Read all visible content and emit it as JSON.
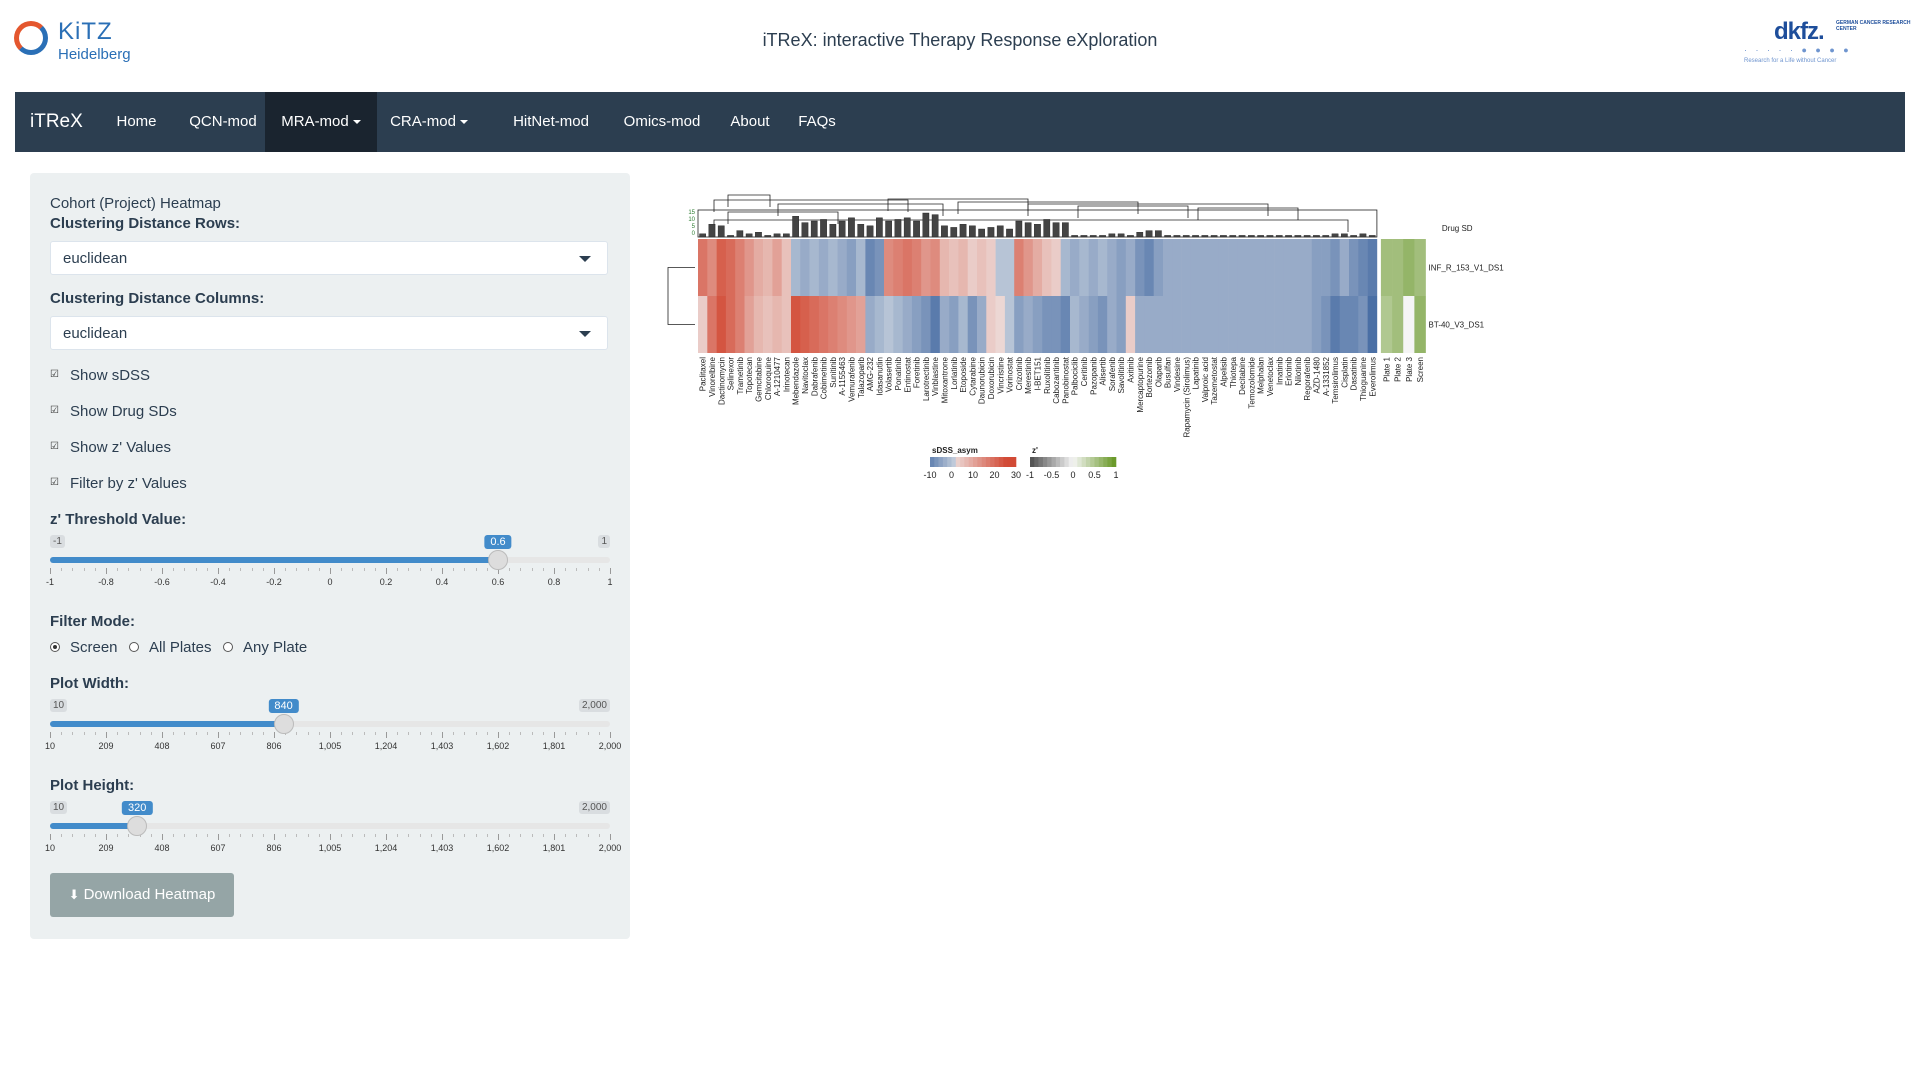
{
  "header": {
    "title": "iTReX: interactive Therapy Response eXploration",
    "left_logo": "KiTZ Heidelberg",
    "right_logo": "dkfz. GERMAN CANCER RESEARCH CENTER IN THE HELMHOLTZ ASSOCIATION"
  },
  "navbar": {
    "brand": "iTReX",
    "items": [
      {
        "label": "Home"
      },
      {
        "label": "QCN-mod"
      },
      {
        "label": "MRA-mod",
        "dropdown": true,
        "active": true
      },
      {
        "label": "CRA-mod",
        "dropdown": true
      },
      {
        "label": "HitNet-mod"
      },
      {
        "label": "Omics-mod"
      },
      {
        "label": "About"
      },
      {
        "label": "FAQs"
      }
    ]
  },
  "sidebar": {
    "section_title": "Cohort (Project) Heatmap",
    "rows_label": "Clustering Distance Rows:",
    "rows_value": "euclidean",
    "cols_label": "Clustering Distance Columns:",
    "cols_value": "euclidean",
    "checkboxes": [
      {
        "label": "Show sDSS",
        "checked": true
      },
      {
        "label": "Show Drug SDs",
        "checked": true
      },
      {
        "label": "Show z' Values",
        "checked": true
      },
      {
        "label": "Filter by z' Values",
        "checked": true
      }
    ],
    "z_threshold": {
      "label": "z' Threshold Value:",
      "min": -1,
      "max": 1,
      "value": 0.6,
      "min_label": "-1",
      "max_label": "1",
      "value_label": "0.6",
      "ticks": [
        "-1",
        "-0.8",
        "-0.6",
        "-0.4",
        "-0.2",
        "0",
        "0.2",
        "0.4",
        "0.6",
        "0.8",
        "1"
      ]
    },
    "filter_mode": {
      "label": "Filter Mode:",
      "options": [
        "Screen",
        "All Plates",
        "Any Plate"
      ],
      "selected": "Screen"
    },
    "plot_width": {
      "label": "Plot Width:",
      "min": 10,
      "max": 2000,
      "value": 840,
      "min_label": "10",
      "max_label": "2,000",
      "value_label": "840",
      "ticks": [
        "10",
        "209",
        "408",
        "607",
        "806",
        "1,005",
        "1,204",
        "1,403",
        "1,602",
        "1,801",
        "2,000"
      ]
    },
    "plot_height": {
      "label": "Plot Height:",
      "min": 10,
      "max": 2000,
      "value": 320,
      "min_label": "10",
      "max_label": "2,000",
      "value_label": "320",
      "ticks": [
        "10",
        "209",
        "408",
        "607",
        "806",
        "1,005",
        "1,204",
        "1,403",
        "1,602",
        "1,801",
        "2,000"
      ]
    },
    "download_label": "Download Heatmap",
    "download_icon": "download-icon"
  },
  "chart_data": {
    "type": "heatmap",
    "rows": [
      "INF_R_153_V1_DS1",
      "BT-40_V3_DS1"
    ],
    "drugs": [
      "Paclitaxel",
      "Vinorelbine",
      "Dactinomycin",
      "Selinexor",
      "Trametinib",
      "Topotecan",
      "Gemcitabine",
      "Chloroquine",
      "A-1210477",
      "Irinotecan",
      "Mebendazole",
      "Navitoclax",
      "Dabrafenib",
      "Cobimetinib",
      "Sunitinib",
      "A-1155463",
      "Vemurafenib",
      "Talazoparib",
      "AMG-232",
      "Idasanutlin",
      "Volasertib",
      "Ponatinib",
      "Entinostat",
      "Foretinib",
      "Larotrectinib",
      "Vinblastine",
      "Mitoxantrone",
      "Lorlatinib",
      "Etoposide",
      "Cytarabine",
      "Daunorubicin",
      "Doxorubicin",
      "Vincristine",
      "Vorinostat",
      "Crizotinib",
      "Merestinib",
      "I-BET151",
      "Ruxolitinib",
      "Cabozantinib",
      "Panobinostat",
      "Palbociclib",
      "Ceritinib",
      "Pazopanib",
      "Alisertib",
      "Sorafenib",
      "Savolitinib",
      "Axitinib",
      "Mercaptopurine",
      "Bortezomib",
      "Olaparib",
      "Busulfan",
      "Vindesine",
      "Rapamycin (Sirolimus)",
      "Lapatinib",
      "Valproic acid",
      "Tazemetostat",
      "Alpelisib",
      "Thiotepa",
      "Decitabine",
      "Temozolomide",
      "Melphalan",
      "Venetoclax",
      "Imatinib",
      "Erlotinib",
      "Nilotinib",
      "Regorafenib",
      "AZD-1480",
      "A-1331852",
      "Temsirolimus",
      "Cisplatin",
      "Dasatinib",
      "Thioguanine",
      "Everolimus"
    ],
    "zprime_columns": [
      "Plate 1",
      "Plate 2",
      "Plate 3",
      "Screen"
    ],
    "drug_sd_label": "Drug SD",
    "drug_sd_axis": [
      "15",
      "10",
      "5",
      "0"
    ],
    "sdss": [
      [
        18,
        14,
        22,
        20,
        16,
        12,
        8,
        6,
        10,
        4,
        -4,
        -6,
        -4,
        -6,
        -4,
        -6,
        -8,
        -4,
        -12,
        -10,
        14,
        16,
        18,
        16,
        12,
        14,
        6,
        4,
        6,
        2,
        4,
        2,
        -2,
        -2,
        16,
        12,
        8,
        4,
        2,
        -4,
        -6,
        -4,
        -6,
        -4,
        -6,
        -8,
        -6,
        -10,
        -12,
        -8,
        -6,
        -6,
        -6,
        -6,
        -6,
        -6,
        -6,
        -6,
        -6,
        -6,
        -6,
        -6,
        -6,
        -6,
        -6,
        -6,
        -8,
        -8,
        -10,
        -6,
        -10,
        -12,
        -14
      ],
      [
        2,
        18,
        24,
        20,
        16,
        10,
        6,
        4,
        6,
        4,
        24,
        22,
        20,
        18,
        16,
        14,
        12,
        10,
        -6,
        -4,
        -2,
        -4,
        -6,
        -8,
        -10,
        -14,
        -6,
        -8,
        -4,
        -10,
        -6,
        2,
        0,
        -2,
        -8,
        -6,
        -8,
        -10,
        -10,
        -12,
        -4,
        -6,
        -8,
        -10,
        -6,
        -8,
        2,
        -6,
        -6,
        -6,
        -6,
        -6,
        -6,
        -6,
        -6,
        -6,
        -6,
        -6,
        -6,
        -6,
        -6,
        -6,
        -6,
        -6,
        -6,
        -6,
        -8,
        -10,
        -14,
        -12,
        -12,
        -10,
        -16
      ]
    ],
    "drug_sd": [
      2,
      8,
      7,
      1,
      4,
      2,
      3,
      1,
      2,
      2,
      13,
      9,
      10,
      11,
      8,
      10,
      12,
      8,
      7,
      12,
      10,
      11,
      12,
      10,
      15,
      14,
      7,
      6,
      8,
      7,
      5,
      6,
      7,
      5,
      10,
      9,
      8,
      11,
      9,
      9,
      1,
      1,
      1,
      1,
      2,
      2,
      1,
      3,
      4,
      4,
      1,
      1,
      1,
      1,
      1,
      1,
      1,
      1,
      1,
      1,
      1,
      1,
      1,
      1,
      1,
      1,
      1,
      1,
      2,
      2,
      1,
      2,
      1
    ],
    "zprime": [
      [
        0.6,
        0.6,
        0.7,
        0.6
      ],
      [
        0.5,
        0.6,
        0.0,
        0.7
      ]
    ],
    "legend_sdss": {
      "title": "sDSS_asym",
      "ticks": [
        "-10",
        "0",
        "10",
        "20",
        "30"
      ],
      "low_color": "#4a6fa5",
      "mid_color": "#f0f0f0",
      "high_color": "#d24a35"
    },
    "legend_z": {
      "title": "z'",
      "ticks": [
        "-1",
        "-0.5",
        "0",
        "0.5",
        "1"
      ],
      "low_color": "#555555",
      "mid_color": "#f5f5f5",
      "high_color": "#6b9a2b"
    }
  }
}
